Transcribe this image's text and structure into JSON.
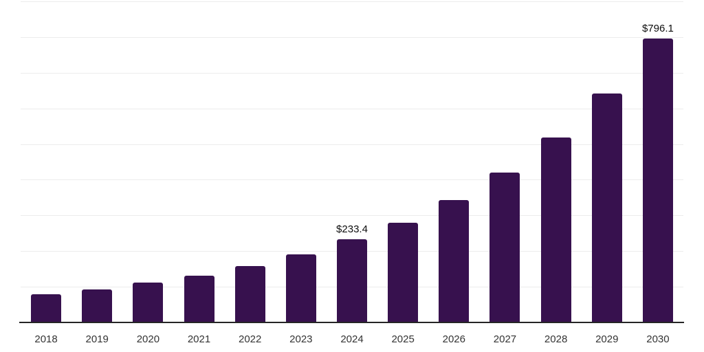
{
  "chart_data": {
    "type": "bar",
    "title": "",
    "xlabel": "",
    "ylabel": "",
    "categories": [
      "2018",
      "2019",
      "2020",
      "2021",
      "2022",
      "2023",
      "2024",
      "2025",
      "2026",
      "2027",
      "2028",
      "2029",
      "2030"
    ],
    "values": [
      78.6,
      93,
      111,
      131,
      158,
      191,
      233.4,
      280,
      343,
      420,
      519,
      642,
      796.1
    ],
    "data_labels": {
      "2024": "$233.4",
      "2030": "$796.1"
    },
    "ylim": [
      0,
      900
    ],
    "gridline_interval": 100,
    "grid": "horizontal-only",
    "legend": "none",
    "y_axis_labels": "none"
  },
  "colors": {
    "bar_fill": "#37114E",
    "gridline": "#ececec",
    "axis_line": "#252525",
    "x_label_text": "#333333",
    "value_label_text": "#0d0d0d",
    "background": "#ffffff"
  }
}
